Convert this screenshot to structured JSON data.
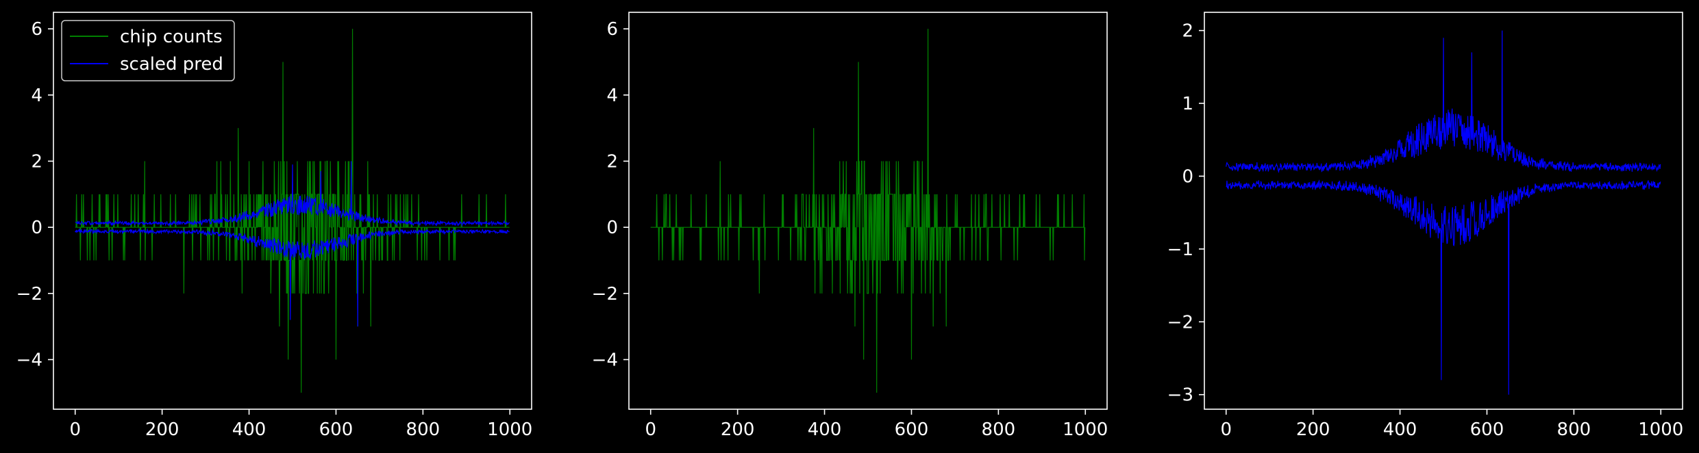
{
  "colors": {
    "background": "#000000",
    "axes": "#ffffff",
    "counts_series": "#008000",
    "pred_series": "#0000ff"
  },
  "chart_data": [
    {
      "type": "line",
      "xlim": [
        -50,
        1050
      ],
      "ylim": [
        -5.5,
        6.5
      ],
      "xticks": [
        0,
        200,
        400,
        600,
        800,
        1000
      ],
      "yticks": [
        -4,
        -2,
        0,
        2,
        4,
        6
      ],
      "grid": false,
      "legend": {
        "position": "top-left",
        "entries": [
          "chip counts",
          "scaled pred"
        ]
      },
      "series": [
        {
          "name": "chip counts",
          "kind": "counts",
          "n": 1000,
          "peaks": [
            [
              160,
              2
            ],
            [
              250,
              -2
            ],
            [
              375,
              3
            ],
            [
              470,
              -3
            ],
            [
              478,
              5
            ],
            [
              490,
              -4
            ],
            [
              520,
              -5
            ],
            [
              600,
              -4
            ],
            [
              638,
              6
            ],
            [
              650,
              -3
            ],
            [
              680,
              -3
            ]
          ]
        },
        {
          "name": "scaled pred",
          "kind": "pred",
          "n": 1000,
          "peaks": [
            [
              495,
              -2.8
            ],
            [
              500,
              1.9
            ],
            [
              565,
              1.7
            ],
            [
              635,
              2.0
            ],
            [
              650,
              -3.0
            ]
          ]
        }
      ]
    },
    {
      "type": "line",
      "xlim": [
        -50,
        1050
      ],
      "ylim": [
        -5.5,
        6.5
      ],
      "xticks": [
        0,
        200,
        400,
        600,
        800,
        1000
      ],
      "yticks": [
        -4,
        -2,
        0,
        2,
        4,
        6
      ],
      "grid": false,
      "series": [
        {
          "kind": "counts",
          "n": 1000,
          "peaks": [
            [
              160,
              2
            ],
            [
              250,
              -2
            ],
            [
              375,
              3
            ],
            [
              470,
              -3
            ],
            [
              478,
              5
            ],
            [
              490,
              -4
            ],
            [
              520,
              -5
            ],
            [
              600,
              -4
            ],
            [
              638,
              6
            ],
            [
              650,
              -3
            ],
            [
              680,
              -3
            ]
          ]
        }
      ]
    },
    {
      "type": "line",
      "xlim": [
        -50,
        1050
      ],
      "ylim": [
        -3.2,
        2.25
      ],
      "xticks": [
        0,
        200,
        400,
        600,
        800,
        1000
      ],
      "yticks": [
        -3,
        -2,
        -1,
        0,
        1,
        2
      ],
      "grid": false,
      "series": [
        {
          "kind": "pred",
          "n": 1000,
          "peaks": [
            [
              495,
              -2.8
            ],
            [
              500,
              1.9
            ],
            [
              565,
              1.7
            ],
            [
              635,
              2.0
            ],
            [
              650,
              -3.0
            ]
          ]
        }
      ]
    }
  ],
  "legend": {
    "label_counts": "chip counts",
    "label_pred": "scaled pred"
  }
}
